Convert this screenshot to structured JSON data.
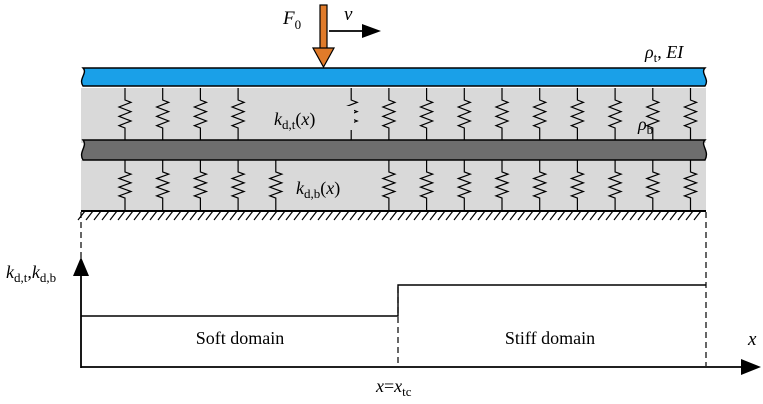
{
  "colors": {
    "top_beam": "#1aa0e8",
    "bottom_beam": "#6e6e6e",
    "layer_fill": "#d9d9d9",
    "force_arrow": "#e07b2a",
    "ink": "#000000"
  },
  "force": {
    "symbol": "F",
    "subscript": "0",
    "velocity": "v"
  },
  "top_beam_label": {
    "rho": "ρ",
    "rho_sub": "t",
    "sep": ", ",
    "ei": "EI"
  },
  "bottom_beam_label": {
    "rho": "ρ",
    "rho_sub": "b"
  },
  "upper_springs_label": {
    "k": "k",
    "sub": "d,t",
    "arg": "(x)"
  },
  "lower_springs_label": {
    "k": "k",
    "sub": "d,b",
    "arg": "(x)"
  },
  "stiffness_plot": {
    "y_axis_label": {
      "k1": "k",
      "sub1": "d,t",
      "comma": ",",
      "k2": "k",
      "sub2": "d,b"
    },
    "x_axis_label": "x",
    "transition_label": {
      "x": "x",
      "eq": "=",
      "x2": "x",
      "sub": "tc"
    },
    "soft_domain": "Soft domain",
    "stiff_domain": "Stiff domain"
  },
  "spring_count_per_layer": 16
}
